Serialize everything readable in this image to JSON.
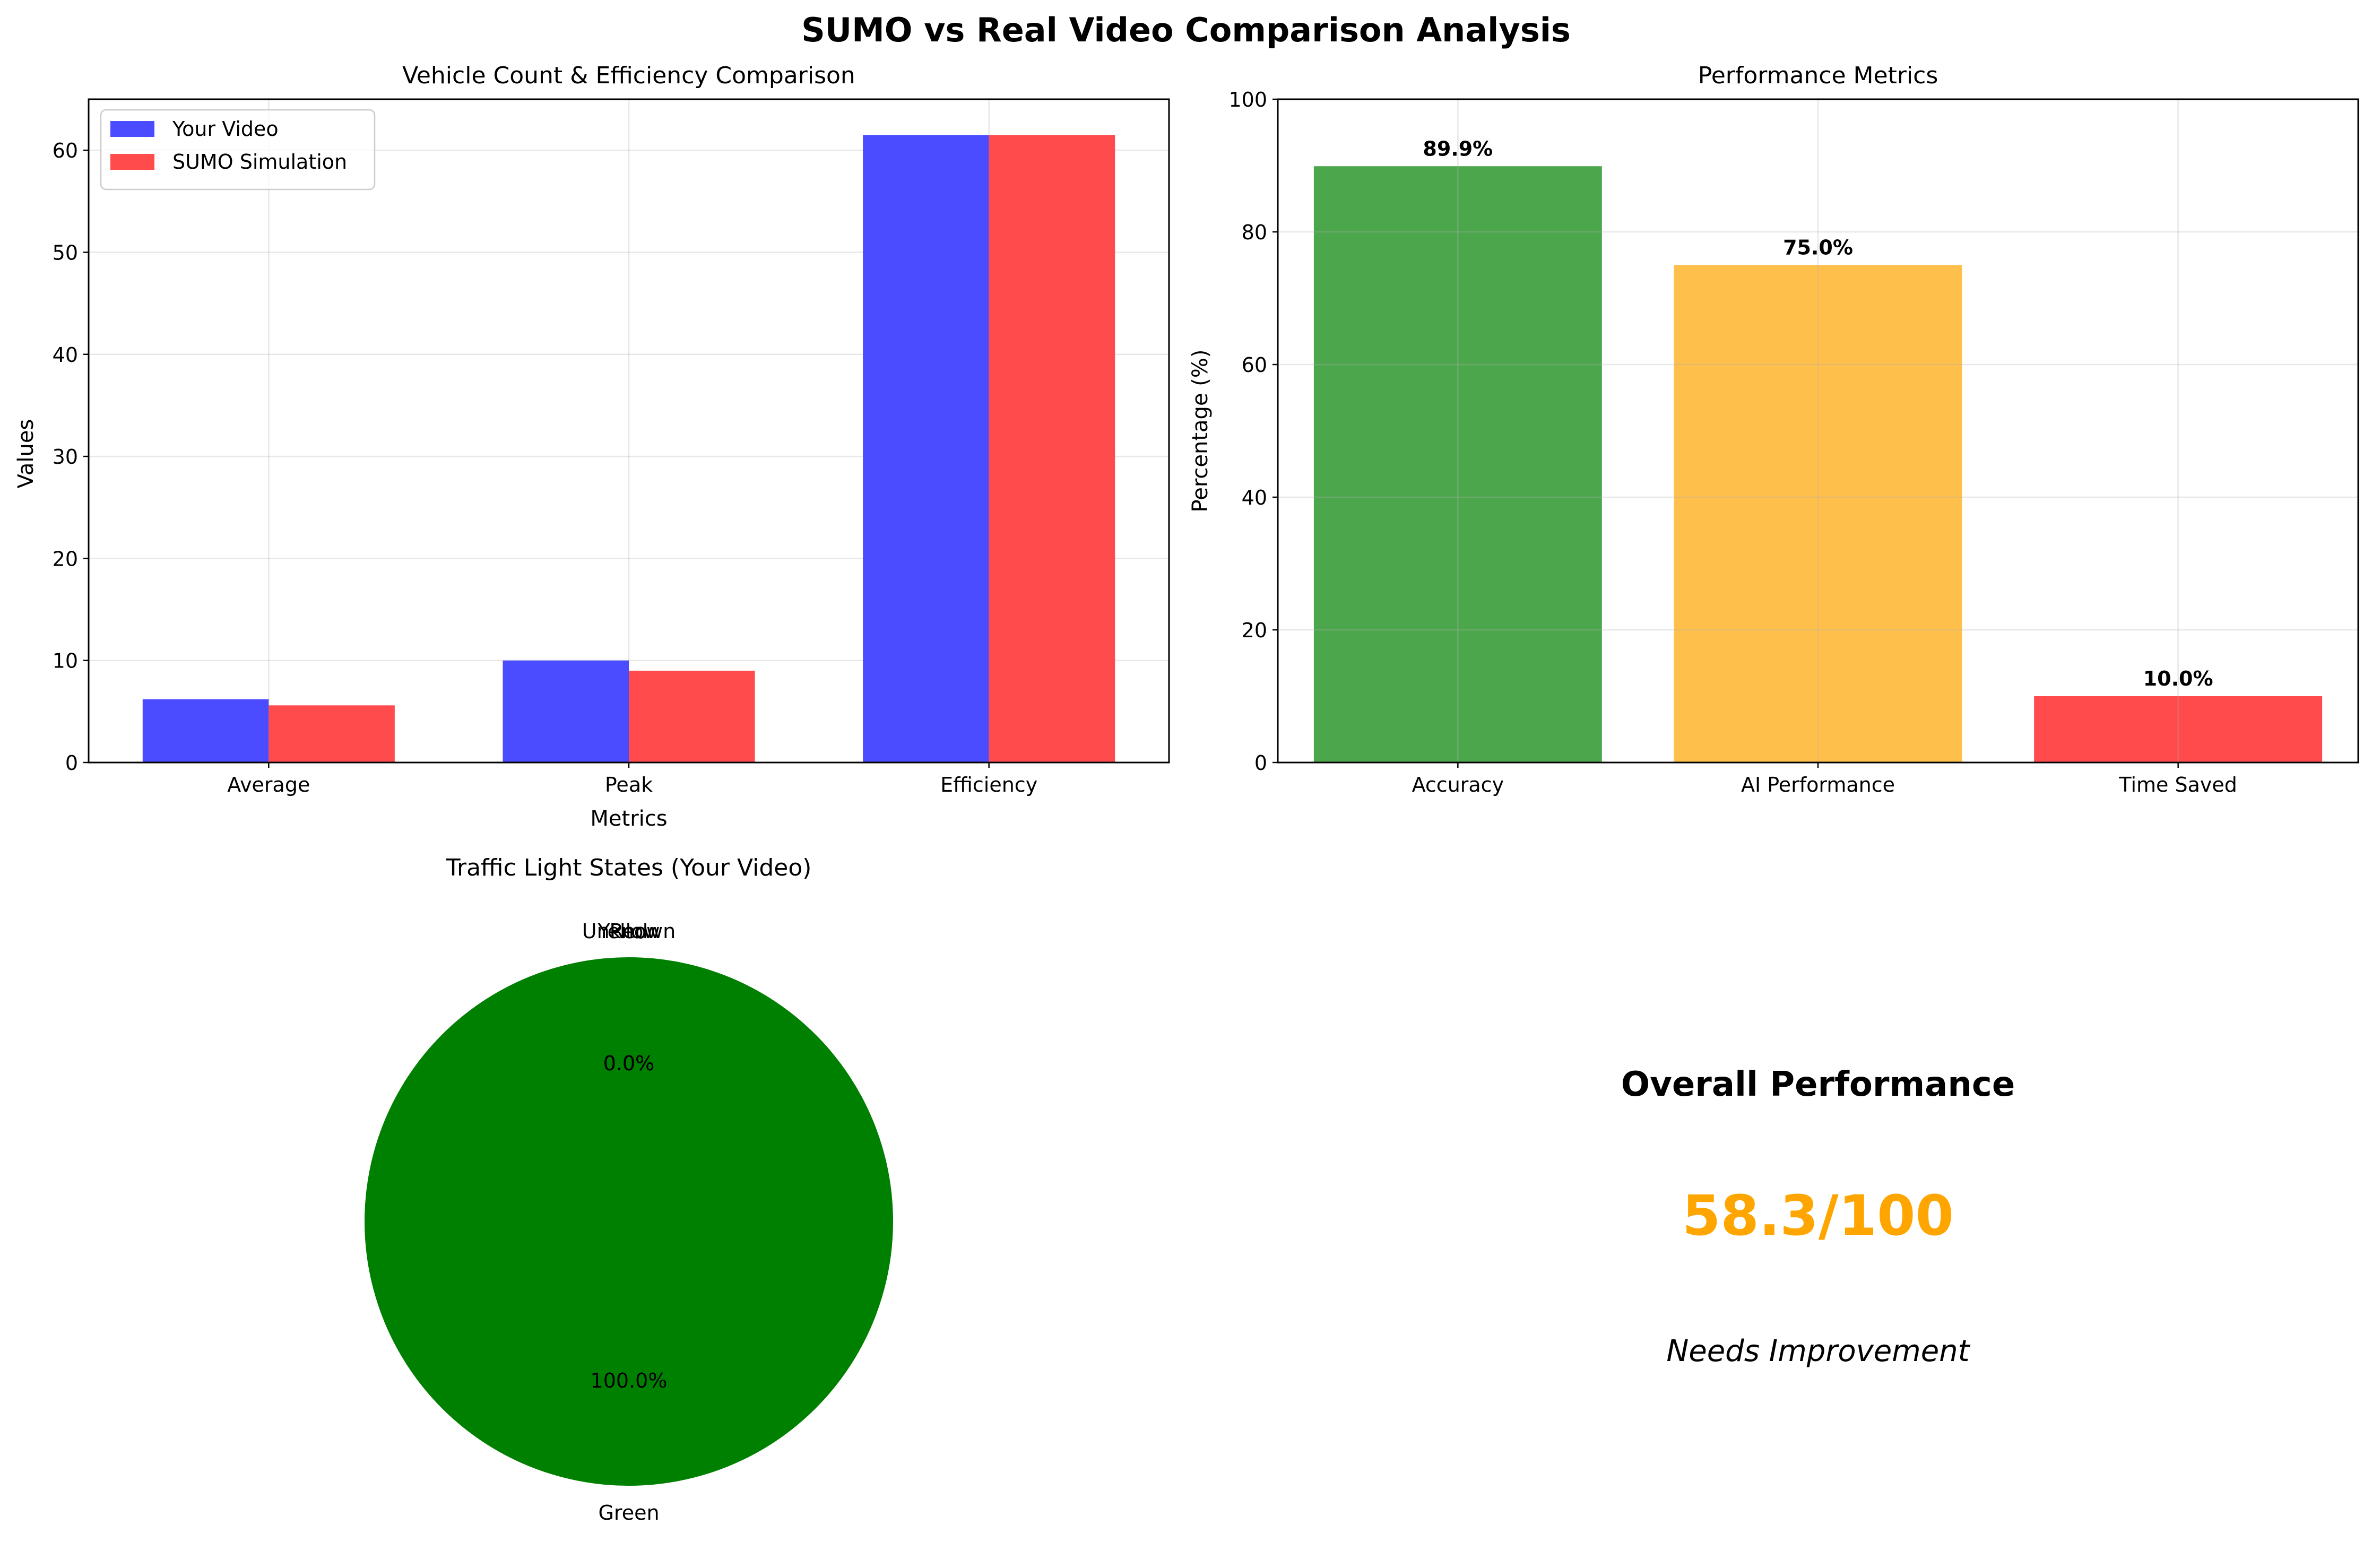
{
  "figure": {
    "suptitle": "SUMO vs Real Video Comparison Analysis"
  },
  "chart_data": [
    {
      "type": "bar",
      "title": "Vehicle Count & Efficiency Comparison",
      "xlabel": "Metrics",
      "ylabel": "Values",
      "categories": [
        "Average",
        "Peak",
        "Efficiency"
      ],
      "series": [
        {
          "name": "Your Video",
          "values": [
            6.2,
            10.0,
            61.5
          ],
          "color": "#4b4bff"
        },
        {
          "name": "SUMO Simulation",
          "values": [
            5.6,
            9.0,
            61.5
          ],
          "color": "#ff4b4b"
        }
      ],
      "ylim": [
        0,
        65
      ],
      "yticks": [
        0,
        10,
        20,
        30,
        40,
        50,
        60
      ],
      "grid": true,
      "legend": "top-left"
    },
    {
      "type": "bar",
      "title": "Performance Metrics",
      "ylabel": "Percentage (%)",
      "categories": [
        "Accuracy",
        "AI Performance",
        "Time Saved"
      ],
      "values": [
        89.9,
        75.0,
        10.0
      ],
      "value_labels": [
        "89.9%",
        "75.0%",
        "10.0%"
      ],
      "colors": [
        "#4ca64c",
        "#ffbf4b",
        "#ff4b4b"
      ],
      "ylim": [
        0,
        100
      ],
      "yticks": [
        0,
        20,
        40,
        60,
        80,
        100
      ],
      "grid": true
    },
    {
      "type": "pie",
      "title": "Traffic Light States (Your Video)",
      "slices": [
        {
          "label": "Green",
          "value": 100.0,
          "pct_label": "100.0%",
          "color": "#008000"
        },
        {
          "label": "Red",
          "value": 0.0,
          "pct_label": "0.0%",
          "color": "#ff0000"
        },
        {
          "label": "Yellow",
          "value": 0.0,
          "pct_label": "0.0%",
          "color": "#ffff00"
        },
        {
          "label": "Unknown",
          "value": 0.0,
          "pct_label": "0.0%",
          "color": "#808080"
        }
      ]
    }
  ],
  "summary": {
    "heading": "Overall Performance",
    "score": "58.3/100",
    "verdict": "Needs Improvement",
    "score_color": "#ffa500"
  }
}
